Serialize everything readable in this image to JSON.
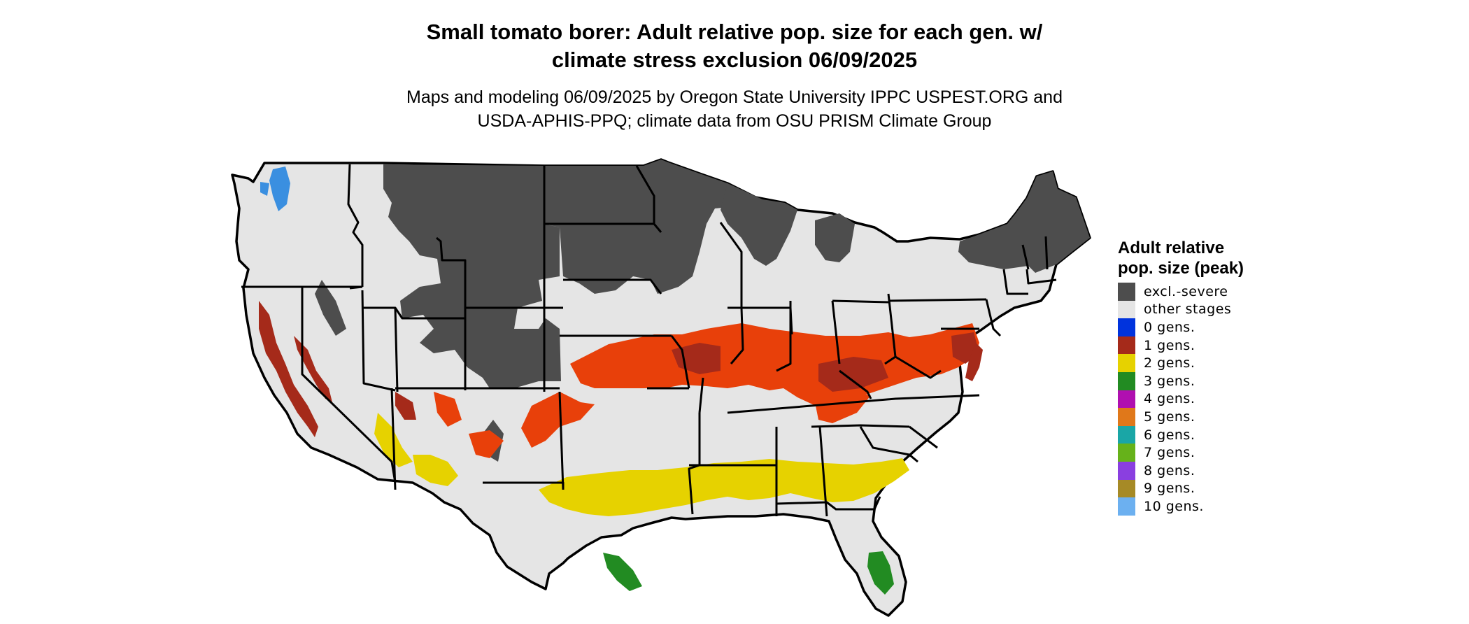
{
  "title_line1": "Small tomato borer: Adult relative pop. size for each gen. w/",
  "title_line2": "climate stress exclusion 06/09/2025",
  "subtitle_line1": "Maps and modeling 06/09/2025 by Oregon State University IPPC USPEST.ORG and",
  "subtitle_line2": "USDA-APHIS-PPQ; climate data from OSU PRISM Climate Group",
  "legend": {
    "title": "Adult relative pop. size (peak)",
    "items": [
      {
        "label": "excl.-severe",
        "color": "#4d4d4d"
      },
      {
        "label": "other stages",
        "color": "#e5e5e5"
      },
      {
        "label": "0 gens.",
        "color": "#0033dd"
      },
      {
        "label": "1 gens.",
        "color": "#a52a1a"
      },
      {
        "label": "2 gens.",
        "color": "#e6d200"
      },
      {
        "label": "3 gens.",
        "color": "#228b22"
      },
      {
        "label": "4 gens.",
        "color": "#b00fb0"
      },
      {
        "label": "5 gens.",
        "color": "#e0781a"
      },
      {
        "label": "6 gens.",
        "color": "#1aa6a6"
      },
      {
        "label": "7 gens.",
        "color": "#66b21a"
      },
      {
        "label": "8 gens.",
        "color": "#8a3fe0"
      },
      {
        "label": "9 gens.",
        "color": "#a68a26"
      },
      {
        "label": "10 gens.",
        "color": "#6cb0f0"
      }
    ]
  },
  "region_colors": {
    "base": "#e5e5e5",
    "excluded": "#4d4d4d",
    "one_gen_orange": "#e8400a",
    "one_gen_red": "#a52a1a",
    "two_gens": "#e6d200",
    "three_gens": "#228b22",
    "ten_gens": "#3a8fe0",
    "boundary": "#000000"
  }
}
